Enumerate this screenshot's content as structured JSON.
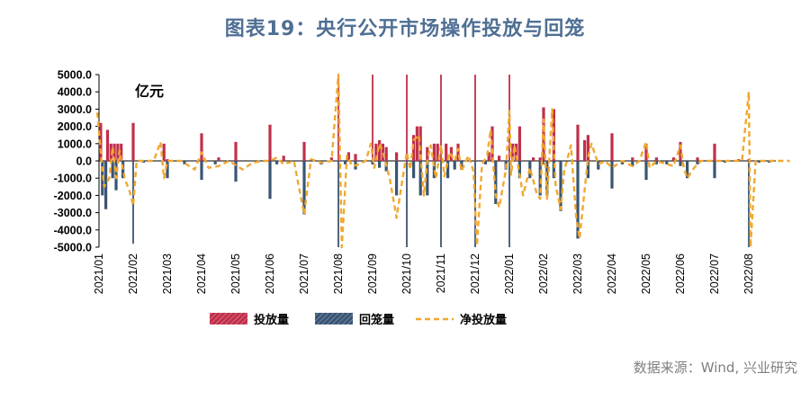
{
  "title": "图表19：央行公开市场操作投放与回笼",
  "source": "数据来源：Wind, 兴业研究",
  "chart_data": {
    "type": "bar",
    "unit": "亿元",
    "ylim": [
      -5000,
      5000
    ],
    "yticks": [
      "5000.0",
      "4000.0",
      "3000.0",
      "2000.0",
      "1000.0",
      "0.0",
      "-1000.0",
      "-2000.0",
      "-3000.0",
      "-4000.0",
      "-5000.0"
    ],
    "xticks": [
      "2021/01",
      "2021/02",
      "2021/03",
      "2021/04",
      "2021/05",
      "2021/06",
      "2021/07",
      "2021/08",
      "2021/09",
      "2021/10",
      "2021/11",
      "2021/12",
      "2022/01",
      "2022/02",
      "2022/03",
      "2022/04",
      "2022/05",
      "2022/06",
      "2022/07",
      "2022/08"
    ],
    "legend_position": "bottom",
    "colors": {
      "inject": "#c0304a",
      "withdraw": "#3a5573",
      "net": "#f0a830"
    },
    "series": [
      {
        "name": "投放量",
        "values": [
          [
            0.05,
            2200
          ],
          [
            0.25,
            1800
          ],
          [
            0.35,
            1000
          ],
          [
            0.45,
            1000
          ],
          [
            0.55,
            1000
          ],
          [
            0.65,
            1000
          ],
          [
            1.0,
            2200
          ],
          [
            1.9,
            1000
          ],
          [
            2.0,
            100
          ],
          [
            3.0,
            1600
          ],
          [
            3.5,
            200
          ],
          [
            4.0,
            1100
          ],
          [
            5.0,
            2100
          ],
          [
            5.4,
            300
          ],
          [
            6.0,
            1100
          ],
          [
            6.8,
            200
          ],
          [
            7.0,
            5000
          ],
          [
            7.3,
            500
          ],
          [
            7.5,
            400
          ],
          [
            8.0,
            5000
          ],
          [
            8.1,
            1000
          ],
          [
            8.2,
            1200
          ],
          [
            8.3,
            1000
          ],
          [
            8.4,
            800
          ],
          [
            8.7,
            500
          ],
          [
            9.0,
            5000
          ],
          [
            9.2,
            1500
          ],
          [
            9.3,
            2000
          ],
          [
            9.4,
            2000
          ],
          [
            9.6,
            800
          ],
          [
            9.8,
            1000
          ],
          [
            9.9,
            1000
          ],
          [
            10.0,
            5000
          ],
          [
            10.15,
            1000
          ],
          [
            10.3,
            800
          ],
          [
            10.5,
            1000
          ],
          [
            11.0,
            5000
          ],
          [
            11.4,
            500
          ],
          [
            11.5,
            2000
          ],
          [
            11.7,
            300
          ],
          [
            12.0,
            5000
          ],
          [
            12.1,
            1000
          ],
          [
            12.2,
            1000
          ],
          [
            12.3,
            2000
          ],
          [
            12.7,
            200
          ],
          [
            12.9,
            200
          ],
          [
            13.0,
            3100
          ],
          [
            13.3,
            3000
          ],
          [
            14.0,
            2100
          ],
          [
            14.2,
            1200
          ],
          [
            14.3,
            1500
          ],
          [
            15.0,
            1600
          ],
          [
            15.6,
            200
          ],
          [
            16.0,
            1000
          ],
          [
            16.3,
            200
          ],
          [
            16.8,
            200
          ],
          [
            17.0,
            1100
          ],
          [
            17.5,
            200
          ],
          [
            18.0,
            1000
          ],
          [
            18.7,
            100
          ],
          [
            19.0,
            100
          ]
        ]
      },
      {
        "name": "回笼量",
        "values": [
          [
            0.1,
            -2000
          ],
          [
            0.2,
            -2800
          ],
          [
            0.4,
            -1000
          ],
          [
            0.5,
            -1700
          ],
          [
            0.7,
            -1000
          ],
          [
            1.0,
            -4800
          ],
          [
            1.3,
            -100
          ],
          [
            2.0,
            -1000
          ],
          [
            2.5,
            -200
          ],
          [
            3.0,
            -1100
          ],
          [
            3.4,
            -200
          ],
          [
            4.0,
            -1200
          ],
          [
            5.0,
            -2200
          ],
          [
            5.2,
            -200
          ],
          [
            6.0,
            -3100
          ],
          [
            6.5,
            -200
          ],
          [
            7.0,
            -5000
          ],
          [
            7.2,
            -200
          ],
          [
            7.5,
            -500
          ],
          [
            8.0,
            -200
          ],
          [
            8.2,
            -400
          ],
          [
            8.4,
            -600
          ],
          [
            8.7,
            -2000
          ],
          [
            9.0,
            -5000
          ],
          [
            9.2,
            -1000
          ],
          [
            9.4,
            -2000
          ],
          [
            9.6,
            -2000
          ],
          [
            9.8,
            -1000
          ],
          [
            10.0,
            -5000
          ],
          [
            10.2,
            -1000
          ],
          [
            10.4,
            -500
          ],
          [
            10.6,
            -500
          ],
          [
            11.0,
            -5000
          ],
          [
            11.3,
            -200
          ],
          [
            11.6,
            -2500
          ],
          [
            11.9,
            -500
          ],
          [
            12.0,
            -5000
          ],
          [
            12.3,
            -1000
          ],
          [
            12.6,
            -1000
          ],
          [
            12.9,
            -2000
          ],
          [
            13.1,
            -2000
          ],
          [
            13.3,
            -1000
          ],
          [
            13.5,
            -2900
          ],
          [
            14.0,
            -4500
          ],
          [
            14.3,
            -1000
          ],
          [
            14.6,
            -500
          ],
          [
            15.0,
            -1600
          ],
          [
            15.3,
            -200
          ],
          [
            15.6,
            -300
          ],
          [
            16.0,
            -1100
          ],
          [
            16.3,
            -200
          ],
          [
            16.6,
            -200
          ],
          [
            17.0,
            -300
          ],
          [
            17.2,
            -1000
          ],
          [
            17.5,
            -200
          ],
          [
            18.0,
            -1000
          ],
          [
            18.3,
            -100
          ],
          [
            19.0,
            -5000
          ],
          [
            19.3,
            -100
          ],
          [
            19.6,
            -100
          ]
        ]
      },
      {
        "name": "净投放量",
        "values": [
          [
            -0.05,
            2800
          ],
          [
            0.05,
            500
          ],
          [
            0.15,
            -1500
          ],
          [
            0.3,
            -1000
          ],
          [
            0.4,
            800
          ],
          [
            0.5,
            -1000
          ],
          [
            0.6,
            600
          ],
          [
            0.75,
            -1000
          ],
          [
            0.9,
            -1800
          ],
          [
            1.0,
            -2600
          ],
          [
            1.1,
            0
          ],
          [
            1.3,
            0
          ],
          [
            1.6,
            0
          ],
          [
            1.8,
            1100
          ],
          [
            1.9,
            -1000
          ],
          [
            2.0,
            0
          ],
          [
            2.4,
            0
          ],
          [
            2.8,
            -500
          ],
          [
            3.0,
            500
          ],
          [
            3.2,
            -400
          ],
          [
            3.5,
            -300
          ],
          [
            3.8,
            0
          ],
          [
            4.2,
            -500
          ],
          [
            4.5,
            -100
          ],
          [
            4.8,
            0
          ],
          [
            5.0,
            0
          ],
          [
            5.2,
            200
          ],
          [
            5.4,
            -200
          ],
          [
            5.7,
            0
          ],
          [
            6.0,
            -3100
          ],
          [
            6.2,
            100
          ],
          [
            6.5,
            -100
          ],
          [
            6.8,
            0
          ],
          [
            7.0,
            5000
          ],
          [
            7.1,
            -5000
          ],
          [
            7.25,
            300
          ],
          [
            7.4,
            -300
          ],
          [
            7.6,
            -200
          ],
          [
            7.8,
            0
          ],
          [
            7.95,
            1000
          ],
          [
            8.05,
            -400
          ],
          [
            8.2,
            1000
          ],
          [
            8.3,
            500
          ],
          [
            8.5,
            -1000
          ],
          [
            8.7,
            -3300
          ],
          [
            8.8,
            -2000
          ],
          [
            9.0,
            500
          ],
          [
            9.1,
            -500
          ],
          [
            9.2,
            1200
          ],
          [
            9.35,
            1500
          ],
          [
            9.5,
            -2000
          ],
          [
            9.6,
            0
          ],
          [
            9.7,
            900
          ],
          [
            9.85,
            -1000
          ],
          [
            10.0,
            900
          ],
          [
            10.1,
            -900
          ],
          [
            10.25,
            500
          ],
          [
            10.4,
            0
          ],
          [
            10.5,
            700
          ],
          [
            10.6,
            -600
          ],
          [
            10.8,
            300
          ],
          [
            10.95,
            -600
          ],
          [
            11.05,
            -4900
          ],
          [
            11.2,
            -200
          ],
          [
            11.35,
            300
          ],
          [
            11.45,
            1800
          ],
          [
            11.6,
            -2000
          ],
          [
            11.7,
            -2700
          ],
          [
            11.9,
            -500
          ],
          [
            12.0,
            2900
          ],
          [
            12.05,
            -800
          ],
          [
            12.15,
            900
          ],
          [
            12.3,
            -800
          ],
          [
            12.4,
            -2000
          ],
          [
            12.6,
            -400
          ],
          [
            12.8,
            -1900
          ],
          [
            12.9,
            -2200
          ],
          [
            13.0,
            2400
          ],
          [
            13.1,
            -2200
          ],
          [
            13.25,
            3000
          ],
          [
            13.35,
            -1400
          ],
          [
            13.5,
            -2800
          ],
          [
            13.6,
            -600
          ],
          [
            13.8,
            900
          ],
          [
            13.95,
            -3200
          ],
          [
            14.05,
            -4500
          ],
          [
            14.3,
            200
          ],
          [
            14.4,
            1000
          ],
          [
            14.6,
            -200
          ],
          [
            14.8,
            0
          ],
          [
            15.0,
            -400
          ],
          [
            15.3,
            0
          ],
          [
            15.6,
            -300
          ],
          [
            15.8,
            0
          ],
          [
            16.0,
            1100
          ],
          [
            16.1,
            -400
          ],
          [
            16.3,
            0
          ],
          [
            16.8,
            -300
          ],
          [
            17.0,
            900
          ],
          [
            17.1,
            -400
          ],
          [
            17.2,
            -1000
          ],
          [
            17.4,
            -400
          ],
          [
            17.6,
            0
          ],
          [
            18.0,
            0
          ],
          [
            18.3,
            0
          ],
          [
            18.8,
            0
          ],
          [
            19.0,
            4000
          ],
          [
            19.05,
            -5000
          ],
          [
            19.2,
            0
          ],
          [
            19.6,
            0
          ],
          [
            20.2,
            0
          ]
        ]
      }
    ]
  }
}
